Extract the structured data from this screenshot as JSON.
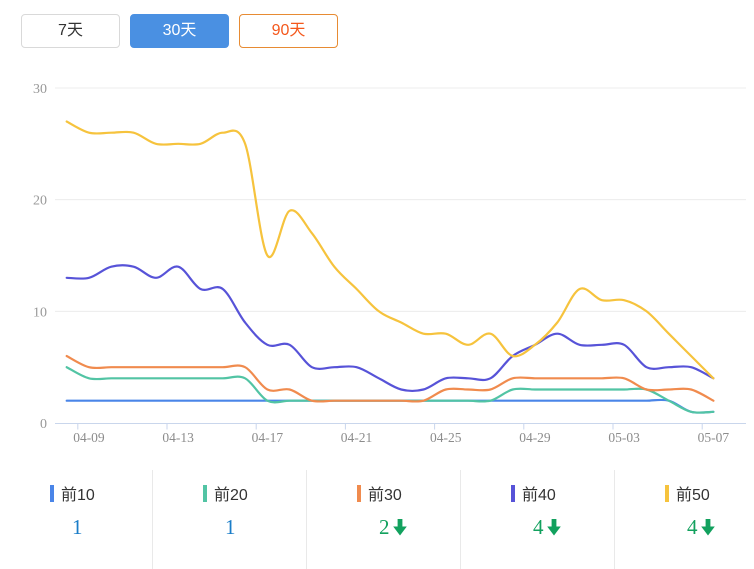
{
  "tabs": [
    {
      "key": "7days",
      "label": "7天",
      "selected": false,
      "style": "default"
    },
    {
      "key": "30days",
      "label": "30天",
      "selected": true,
      "style": "primary"
    },
    {
      "key": "90days",
      "label": "90天",
      "selected": false,
      "style": "warning"
    }
  ],
  "colors": {
    "tab_active_bg": "#4A90E2",
    "tab_warning_border": "#E78B33",
    "tab_warning_text": "#F4581C",
    "value_blue": "#1A7DC8",
    "value_green": "#12A15E",
    "axis_label": "#999999",
    "grid_line": "#ECECEC",
    "axis_line": "#C9D6EC"
  },
  "chart_data": {
    "type": "line",
    "smooth": true,
    "grid": true,
    "ylim": [
      0,
      30
    ],
    "y_ticks": [
      0,
      10,
      20,
      30
    ],
    "x_tick_labels": [
      "04-09",
      "04-13",
      "04-17",
      "04-21",
      "04-25",
      "04-29",
      "05-03",
      "05-07"
    ],
    "x_dates": [
      "04-08",
      "04-09",
      "04-10",
      "04-11",
      "04-12",
      "04-13",
      "04-14",
      "04-15",
      "04-16",
      "04-17",
      "04-18",
      "04-19",
      "04-20",
      "04-21",
      "04-22",
      "04-23",
      "04-24",
      "04-25",
      "04-26",
      "04-27",
      "04-28",
      "04-29",
      "04-30",
      "05-01",
      "05-02",
      "05-03",
      "05-04",
      "05-05",
      "05-06",
      "05-07"
    ],
    "series": [
      {
        "key": "top10",
        "name": "前10",
        "color": "#4A85E8",
        "values": [
          2,
          2,
          2,
          2,
          2,
          2,
          2,
          2,
          2,
          2,
          2,
          2,
          2,
          2,
          2,
          2,
          2,
          2,
          2,
          2,
          2,
          2,
          2,
          2,
          2,
          2,
          2,
          2,
          1,
          1
        ]
      },
      {
        "key": "top20",
        "name": "前20",
        "color": "#52C4A4",
        "values": [
          5,
          4,
          4,
          4,
          4,
          4,
          4,
          4,
          4,
          2,
          2,
          2,
          2,
          2,
          2,
          2,
          2,
          2,
          2,
          2,
          3,
          3,
          3,
          3,
          3,
          3,
          3,
          2,
          1,
          1
        ]
      },
      {
        "key": "top30",
        "name": "前30",
        "color": "#F08B4E",
        "values": [
          6,
          5,
          5,
          5,
          5,
          5,
          5,
          5,
          5,
          3,
          3,
          2,
          2,
          2,
          2,
          2,
          2,
          3,
          3,
          3,
          4,
          4,
          4,
          4,
          4,
          4,
          3,
          3,
          3,
          2
        ]
      },
      {
        "key": "top40",
        "name": "前40",
        "color": "#5753D8",
        "values": [
          13,
          13,
          14,
          14,
          13,
          14,
          12,
          12,
          9,
          7,
          7,
          5,
          5,
          5,
          4,
          3,
          3,
          4,
          4,
          4,
          6,
          7,
          8,
          7,
          7,
          7,
          5,
          5,
          5,
          4
        ]
      },
      {
        "key": "top50",
        "name": "前50",
        "color": "#F6C33D",
        "values": [
          27,
          26,
          26,
          26,
          25,
          25,
          25,
          26,
          25,
          15,
          19,
          17,
          14,
          12,
          10,
          9,
          8,
          8,
          7,
          8,
          6,
          7,
          9,
          12,
          11,
          11,
          10,
          8,
          6,
          4
        ]
      }
    ],
    "legend_position": "bottom"
  },
  "legend": {
    "items": [
      {
        "key": "top10",
        "label": "前10",
        "color": "#4A85E8",
        "value": "1",
        "trend": "none"
      },
      {
        "key": "top20",
        "label": "前20",
        "color": "#52C4A4",
        "value": "1",
        "trend": "none"
      },
      {
        "key": "top30",
        "label": "前30",
        "color": "#F08B4E",
        "value": "2",
        "trend": "down"
      },
      {
        "key": "top40",
        "label": "前40",
        "color": "#5753D8",
        "value": "4",
        "trend": "down"
      },
      {
        "key": "top50",
        "label": "前50",
        "color": "#F6C33D",
        "value": "4",
        "trend": "down"
      }
    ]
  }
}
